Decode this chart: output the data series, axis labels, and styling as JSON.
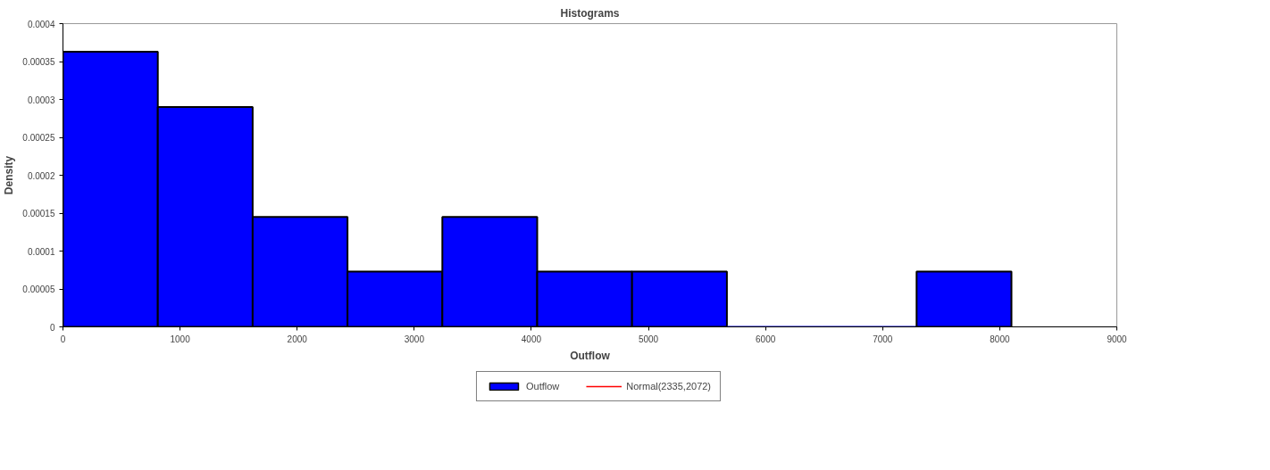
{
  "chart_data": {
    "type": "histogram",
    "title": "Histograms",
    "xlabel": "Outflow",
    "ylabel": "Density",
    "bins": [
      0,
      810,
      1620,
      2430,
      3240,
      4050,
      4860,
      5670,
      6480,
      7290,
      8100
    ],
    "series": [
      {
        "name": "Outflow",
        "color": "#0000ff",
        "values": [
          0.000363,
          0.00029,
          0.000145,
          7.3e-05,
          0.000145,
          7.3e-05,
          7.3e-05,
          0,
          0,
          7.3e-05
        ]
      },
      {
        "name": "Normal(2335,2072)",
        "type": "line",
        "color": "#ff0000"
      }
    ],
    "xlim": [
      0,
      9000
    ],
    "xticks": [
      0,
      1000,
      2000,
      3000,
      4000,
      5000,
      6000,
      7000,
      8000,
      9000
    ],
    "ylim": [
      0,
      0.0004
    ],
    "yticks": [
      0,
      {
        "value": 5e-05,
        "label": "0.00005"
      },
      0.0001,
      0.00015,
      0.0002,
      0.00025,
      0.0003,
      0.00035,
      0.0004
    ],
    "grid": false,
    "legend": "bottom"
  }
}
